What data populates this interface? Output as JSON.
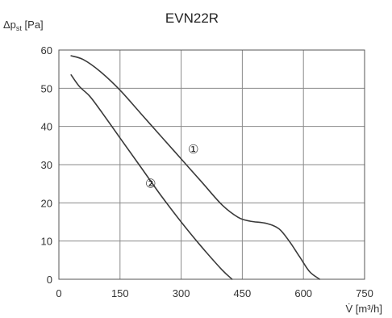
{
  "chart_data": {
    "type": "line",
    "title": "EVN22R",
    "ylabel": {
      "base": "Δp",
      "sub": "st",
      "unit": " [Pa]"
    },
    "xlabel": {
      "base": "V̇",
      "unit": " [m³/h]"
    },
    "xlim": [
      0,
      750
    ],
    "ylim": [
      0,
      60
    ],
    "xticks": [
      0,
      150,
      300,
      450,
      600,
      750
    ],
    "yticks": [
      0,
      10,
      20,
      30,
      40,
      50,
      60
    ],
    "grid": true,
    "series": [
      {
        "name": "①",
        "points": [
          [
            30,
            58.5
          ],
          [
            60,
            57.5
          ],
          [
            100,
            54.5
          ],
          [
            150,
            49.5
          ],
          [
            200,
            43.5
          ],
          [
            250,
            37.5
          ],
          [
            300,
            31.5
          ],
          [
            350,
            25.5
          ],
          [
            400,
            19.5
          ],
          [
            440,
            16.2
          ],
          [
            470,
            15.2
          ],
          [
            510,
            14.6
          ],
          [
            540,
            13.2
          ],
          [
            565,
            10
          ],
          [
            590,
            6
          ],
          [
            615,
            2
          ],
          [
            640,
            0
          ]
        ]
      },
      {
        "name": "②",
        "points": [
          [
            30,
            53.5
          ],
          [
            50,
            50.5
          ],
          [
            75,
            48
          ],
          [
            100,
            44.5
          ],
          [
            150,
            37
          ],
          [
            200,
            29.5
          ],
          [
            250,
            22
          ],
          [
            300,
            15
          ],
          [
            350,
            8.5
          ],
          [
            400,
            2.5
          ],
          [
            425,
            0
          ]
        ]
      }
    ],
    "annotations": [
      {
        "text": "①",
        "x": 330,
        "y": 33
      },
      {
        "text": "②",
        "x": 225,
        "y": 24
      }
    ]
  }
}
